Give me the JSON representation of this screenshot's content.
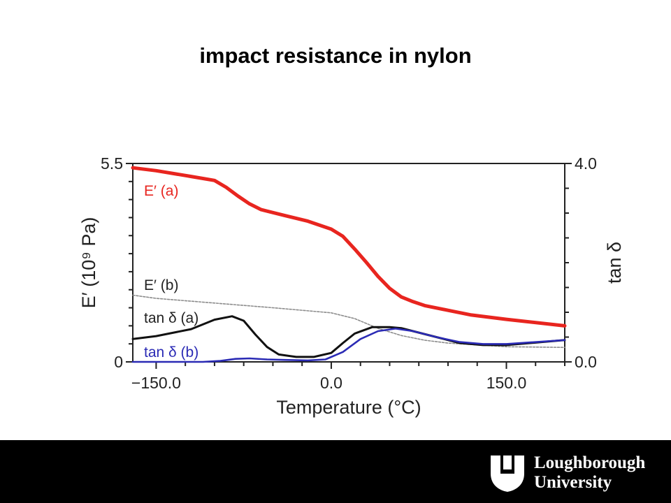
{
  "slide": {
    "title": "impact resistance in nylon"
  },
  "footer": {
    "logo_line1": "Loughborough",
    "logo_line2": "University"
  },
  "chart_data": {
    "type": "line",
    "title": "",
    "xlabel": "Temperature (°C)",
    "ylabel_left": "E′ (10⁹ Pa)",
    "ylabel_right": "tan δ",
    "xlim": [
      -170,
      200
    ],
    "ylim_left": [
      0,
      5.5
    ],
    "ylim_right": [
      0.0,
      4.0
    ],
    "x_ticks": [
      -150.0,
      0.0,
      150.0
    ],
    "x_tick_labels": [
      "−150.0",
      "0.0",
      "150.0"
    ],
    "y_left_tick_labels": [
      "0",
      "5.5"
    ],
    "y_right_tick_labels": [
      "0.0",
      "4.0"
    ],
    "grid": false,
    "series": [
      {
        "name": "E′ (a)",
        "axis": "left",
        "color": "#e8251f",
        "x": [
          -170,
          -150,
          -120,
          -100,
          -90,
          -80,
          -70,
          -60,
          -40,
          -20,
          0,
          10,
          20,
          30,
          40,
          50,
          60,
          70,
          80,
          100,
          120,
          150,
          200
        ],
        "y": [
          5.38,
          5.3,
          5.14,
          5.03,
          4.84,
          4.6,
          4.38,
          4.22,
          4.06,
          3.9,
          3.68,
          3.48,
          3.13,
          2.76,
          2.37,
          2.04,
          1.8,
          1.67,
          1.56,
          1.43,
          1.3,
          1.18,
          1.0
        ]
      },
      {
        "name": "E′ (b)",
        "axis": "left",
        "color": "#8c8c8c",
        "x": [
          -170,
          -150,
          -100,
          -50,
          0,
          20,
          40,
          60,
          80,
          100,
          150,
          200
        ],
        "y": [
          1.85,
          1.76,
          1.63,
          1.5,
          1.36,
          1.2,
          0.93,
          0.73,
          0.6,
          0.52,
          0.42,
          0.4
        ]
      },
      {
        "name": "tan δ (a)",
        "axis": "right",
        "color": "#111111",
        "x": [
          -170,
          -150,
          -120,
          -100,
          -85,
          -75,
          -65,
          -55,
          -45,
          -30,
          -15,
          0,
          10,
          20,
          35,
          50,
          60,
          70,
          90,
          110,
          130,
          150,
          200
        ],
        "y": [
          0.46,
          0.52,
          0.66,
          0.85,
          0.92,
          0.83,
          0.55,
          0.3,
          0.15,
          0.1,
          0.1,
          0.18,
          0.38,
          0.57,
          0.7,
          0.7,
          0.68,
          0.62,
          0.5,
          0.38,
          0.34,
          0.34,
          0.44
        ]
      },
      {
        "name": "tan δ (b)",
        "axis": "right",
        "color": "#2b2bb5",
        "x": [
          -170,
          -110,
          -95,
          -82,
          -70,
          -55,
          -40,
          -20,
          -5,
          10,
          25,
          40,
          55,
          70,
          90,
          110,
          130,
          150,
          200
        ],
        "y": [
          0.0,
          0.0,
          0.02,
          0.06,
          0.07,
          0.05,
          0.04,
          0.03,
          0.05,
          0.2,
          0.46,
          0.62,
          0.67,
          0.62,
          0.5,
          0.4,
          0.36,
          0.36,
          0.44
        ]
      }
    ],
    "annotations": [
      {
        "text": "E′ (a)",
        "color": "#e8251f"
      },
      {
        "text": "E′ (b)",
        "color": "#222222"
      },
      {
        "text": "tan δ (a)",
        "color": "#222222"
      },
      {
        "text": "tan δ (b)",
        "color": "#2b2bb5"
      }
    ]
  }
}
